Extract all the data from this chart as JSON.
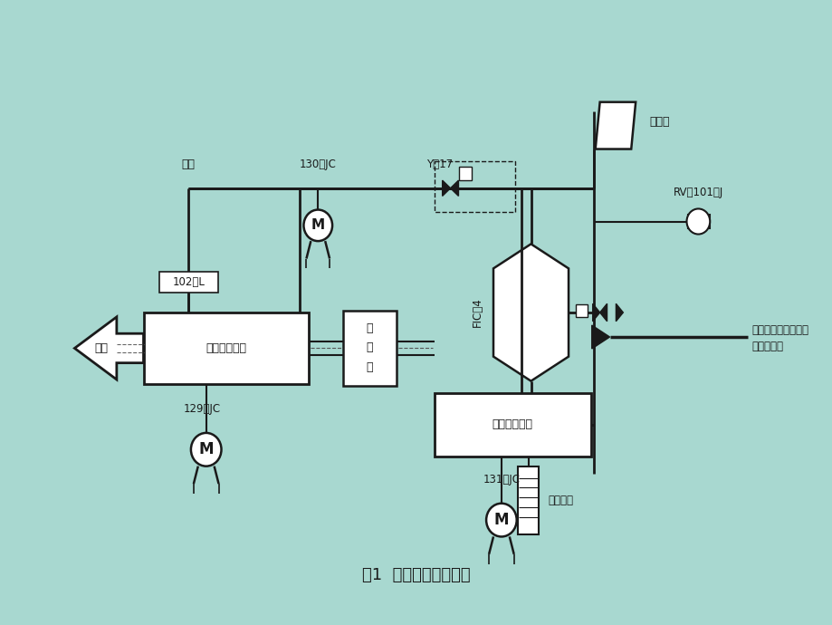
{
  "title": "图1  空气压缩机流程图",
  "bg_outer": "#a8d8d0",
  "bg_paper": "#f2efe8",
  "line_color": "#1a1a1a",
  "labels": {
    "daqi": "大气",
    "jc130": "130－JC",
    "y17": "Y－17",
    "rv101j": "RV－101－J",
    "silencer": "消音器",
    "l102": "102－L",
    "fic4": "FIC－4",
    "tuping": "透平",
    "lp_cyl": "压缩机低压缸",
    "hp_cyl": "压缩机高压缸",
    "gearbox": [
      "增",
      "速",
      "筱"
    ],
    "jc129": "129－JC",
    "jc131": "131－JC",
    "yibiao": "仪表空气",
    "outlet_line1": "去一段炉对流段干热",
    "outlet_line2": "后到二段炉"
  }
}
